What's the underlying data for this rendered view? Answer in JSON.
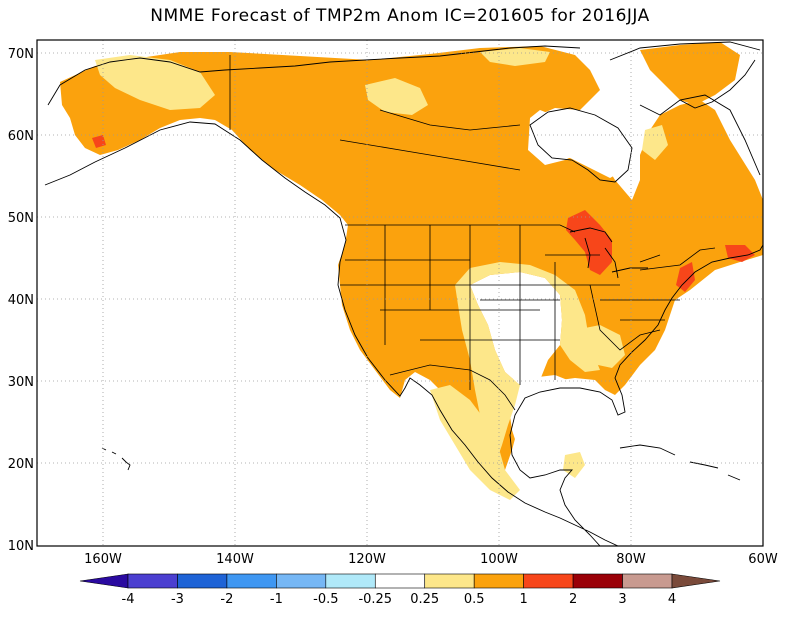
{
  "title": "NMME Forecast of TMP2m Anom  IC=201605 for 2016JJA",
  "lat_labels": [
    "70N",
    "60N",
    "50N",
    "40N",
    "30N",
    "20N",
    "10N"
  ],
  "lon_labels": [
    "160W",
    "140W",
    "120W",
    "100W",
    "80W",
    "60W"
  ],
  "colorbar": {
    "labels": [
      "-4",
      "-3",
      "-2",
      "-1",
      "-0.5",
      "-0.25",
      "0.25",
      "0.5",
      "1",
      "2",
      "3",
      "4"
    ],
    "colors": [
      "#2a0aa0",
      "#4b3fd0",
      "#1e63d6",
      "#3f97f2",
      "#76b7f5",
      "#b0e9f9",
      "#ffffff",
      "#fde78a",
      "#fba20d",
      "#f7461a",
      "#9a0008",
      "#c89a90",
      "#7a4a3a"
    ]
  },
  "anomaly_colors": {
    "weak": "#fde78a",
    "moderate": "#fba20d",
    "strong": "#f7461a"
  }
}
